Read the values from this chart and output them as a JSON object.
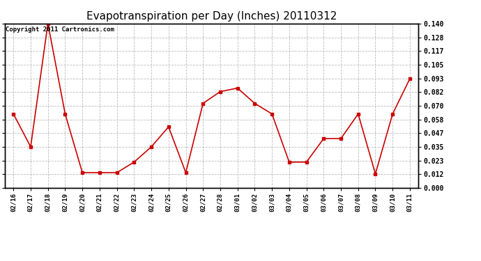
{
  "title": "Evapotranspiration per Day (Inches) 20110312",
  "copyright_text": "Copyright 2011 Cartronics.com",
  "x_labels": [
    "02/16",
    "02/17",
    "02/18",
    "02/19",
    "02/20",
    "02/21",
    "02/22",
    "02/23",
    "02/24",
    "02/25",
    "02/26",
    "02/27",
    "02/28",
    "03/01",
    "03/02",
    "03/03",
    "03/04",
    "03/05",
    "03/06",
    "03/07",
    "03/08",
    "03/09",
    "03/10",
    "03/11"
  ],
  "y_values": [
    0.063,
    0.035,
    0.14,
    0.063,
    0.013,
    0.013,
    0.013,
    0.022,
    0.035,
    0.052,
    0.013,
    0.072,
    0.082,
    0.085,
    0.072,
    0.063,
    0.022,
    0.022,
    0.042,
    0.042,
    0.063,
    0.012,
    0.063,
    0.093
  ],
  "line_color": "#cc0000",
  "marker": "s",
  "marker_size": 3,
  "ylim": [
    0.0,
    0.14
  ],
  "yticks": [
    0.0,
    0.012,
    0.023,
    0.035,
    0.047,
    0.058,
    0.07,
    0.082,
    0.093,
    0.105,
    0.117,
    0.128,
    0.14
  ],
  "background_color": "#ffffff",
  "grid_color": "#aaaaaa",
  "title_fontsize": 11,
  "copyright_fontsize": 6.5
}
